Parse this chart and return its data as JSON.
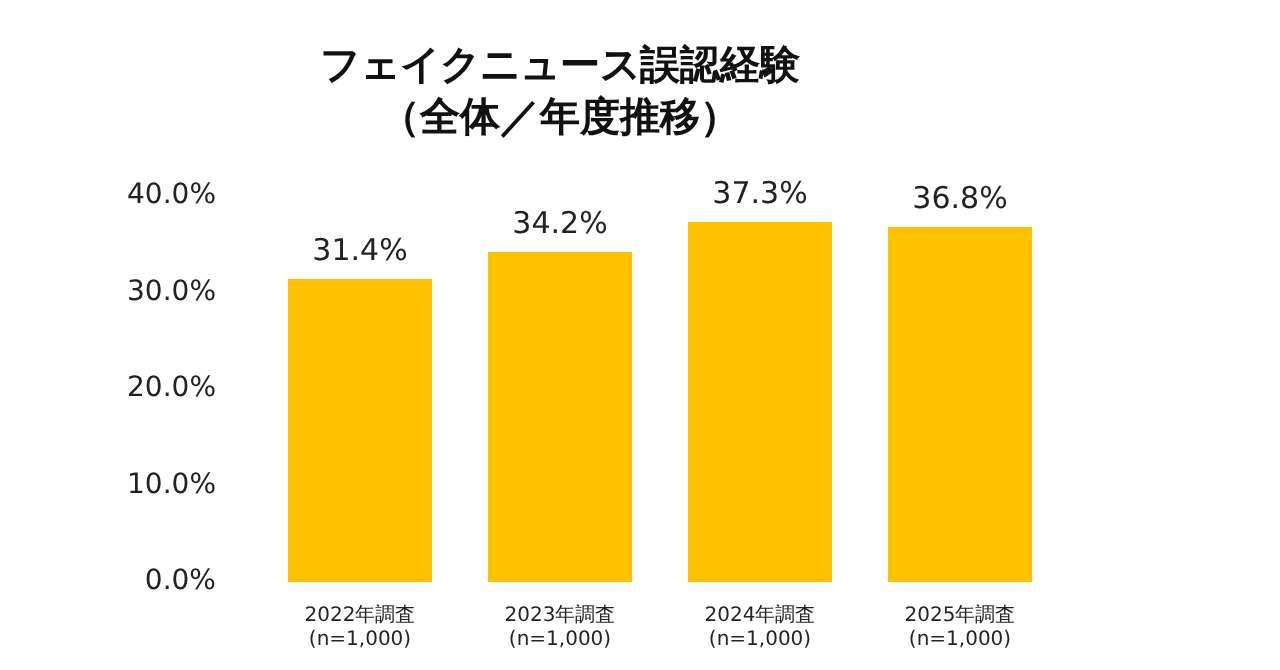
{
  "chart_data": {
    "type": "bar",
    "title": "フェイクニュース誤認経験",
    "subtitle": "（全体／年度推移）",
    "categories": [
      "2022年調査\n(n=1,000)",
      "2023年調査\n(n=1,000)",
      "2024年調査\n(n=1,000)",
      "2025年調査\n(n=1,000)"
    ],
    "values": [
      31.4,
      34.2,
      37.3,
      36.8
    ],
    "color": "#ffc000",
    "value_labels": [
      "31.4%",
      "34.2%",
      "37.3%",
      "36.8%"
    ],
    "ylim": [
      0,
      40
    ],
    "yticks": [
      {
        "value": 0,
        "label": "0.0%"
      },
      {
        "value": 10,
        "label": "10.0%"
      },
      {
        "value": 20,
        "label": "20.0%"
      },
      {
        "value": 30,
        "label": "30.0%"
      },
      {
        "value": 40,
        "label": "40.0%"
      }
    ]
  }
}
